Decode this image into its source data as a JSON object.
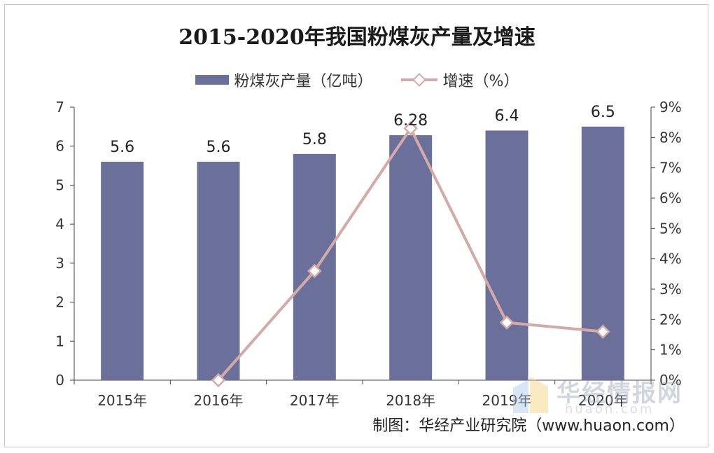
{
  "title": "2015-2020年我国粉煤灰产量及增速",
  "legend": {
    "bar_label": "粉煤灰产量（亿吨）",
    "line_label": "增速（%）"
  },
  "source": "制图：华经产业研究院（www.huaon.com）",
  "watermark": {
    "cn": "华经情报网",
    "en": "huaon.com"
  },
  "colors": {
    "bar": "#6a7099",
    "line": "#d4aaa9",
    "marker_fill": "#ffffff"
  },
  "chart_data": {
    "type": "bar",
    "categories": [
      "2015年",
      "2016年",
      "2017年",
      "2018年",
      "2019年",
      "2020年"
    ],
    "series": [
      {
        "name": "粉煤灰产量（亿吨）",
        "type": "bar",
        "axis": "left",
        "values": [
          5.6,
          5.6,
          5.8,
          6.28,
          6.4,
          6.5
        ],
        "labels": [
          "5.6",
          "5.6",
          "5.8",
          "6.28",
          "6.4",
          "6.5"
        ]
      },
      {
        "name": "增速（%）",
        "type": "line",
        "axis": "right",
        "values": [
          null,
          0.0,
          3.6,
          8.3,
          1.9,
          1.6
        ]
      }
    ],
    "y_left": {
      "lim": [
        0,
        7
      ],
      "ticks": [
        "0",
        "1",
        "2",
        "3",
        "4",
        "5",
        "6",
        "7"
      ]
    },
    "y_right": {
      "lim": [
        0,
        9
      ],
      "ticks": [
        "0%",
        "1%",
        "2%",
        "3%",
        "4%",
        "5%",
        "6%",
        "7%",
        "8%",
        "9%"
      ]
    },
    "grid": false,
    "legend_position": "top-center"
  }
}
